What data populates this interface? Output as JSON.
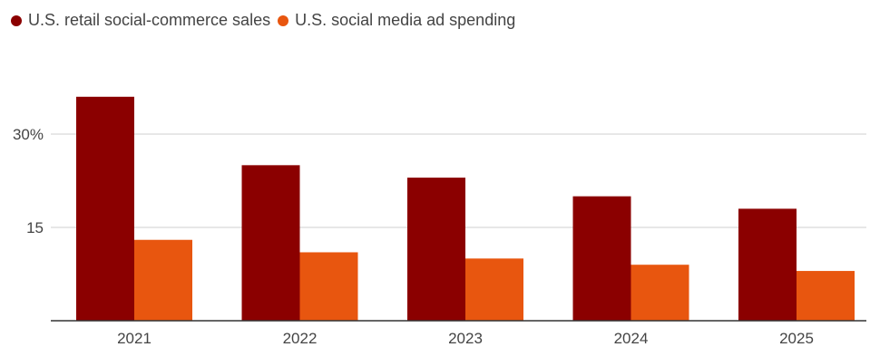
{
  "chart_data": {
    "type": "bar",
    "title": "",
    "xlabel": "",
    "ylabel": "",
    "categories": [
      "2021",
      "2022",
      "2023",
      "2024",
      "2025"
    ],
    "series": [
      {
        "name": "U.S. retail social-commerce sales",
        "color": "#8b0000",
        "values": [
          36,
          25,
          23,
          20,
          18
        ]
      },
      {
        "name": "U.S. social media ad spending",
        "color": "#e8560f",
        "values": [
          13,
          11,
          10,
          9,
          8
        ]
      }
    ],
    "ylim": [
      0,
      36
    ],
    "yticks": [
      15,
      30
    ],
    "ytick_labels": [
      "15",
      "30%"
    ],
    "grid": true,
    "legend_position": "top-left"
  }
}
